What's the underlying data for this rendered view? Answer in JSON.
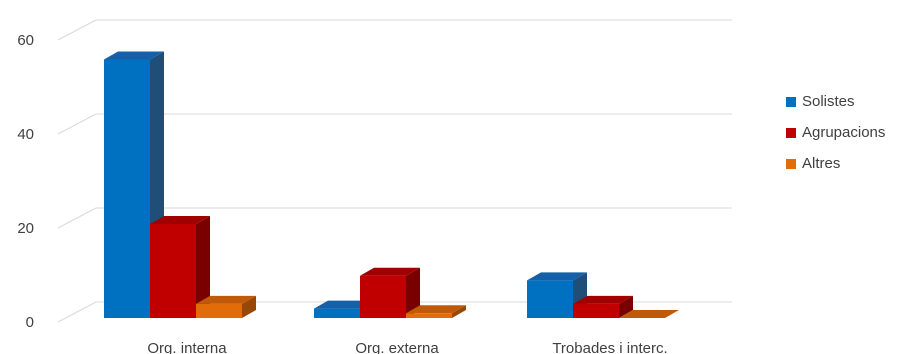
{
  "chart_data": {
    "type": "bar",
    "title": "",
    "xlabel": "",
    "ylabel": "",
    "ylim": [
      0,
      60
    ],
    "yticks": [
      "0",
      "20",
      "40",
      "60"
    ],
    "categories": [
      "Org. interna",
      "Org. externa",
      "Trobades i interc."
    ],
    "series": [
      {
        "name": "Solistes",
        "values": [
          55,
          2,
          8
        ],
        "color": "#0070C0",
        "side": "#1F4E79",
        "top": "#1560A8"
      },
      {
        "name": "Agrupacions",
        "values": [
          20,
          9,
          3
        ],
        "color": "#C00000",
        "side": "#7A0000",
        "top": "#A00000"
      },
      {
        "name": "Altres",
        "values": [
          3,
          1,
          0
        ],
        "color": "#E36C0A",
        "side": "#974706",
        "top": "#C05A08"
      }
    ],
    "grid": true,
    "legend": "right",
    "style": "3d-clustered-column"
  }
}
